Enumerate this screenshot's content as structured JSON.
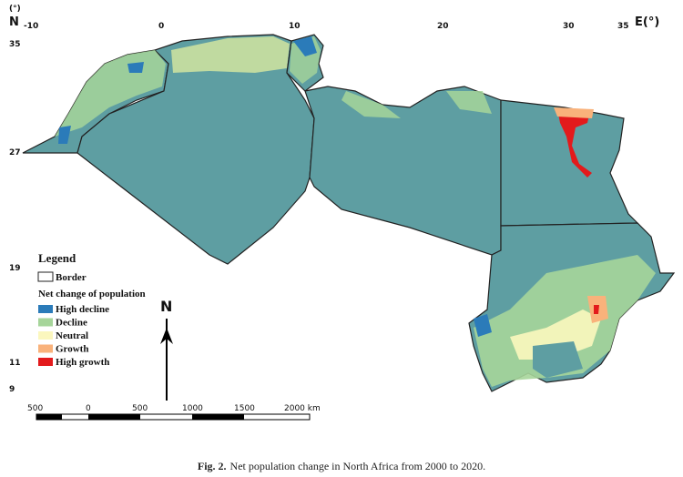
{
  "axes": {
    "lat_unit": "(°)",
    "lat_letter": "N",
    "lat_ticks": [
      "35",
      "27",
      "19",
      "11",
      "9"
    ],
    "lon_ticks": [
      "-10",
      "0",
      "10",
      "20",
      "30",
      "35"
    ],
    "lon_unit": "E(°)"
  },
  "legend": {
    "title": "Legend",
    "border": "Border",
    "subtitle": "Net change of population",
    "items": [
      {
        "name": "High decline",
        "color": "#2b7bb9"
      },
      {
        "name": "Decline",
        "color": "#a6d59a"
      },
      {
        "name": "Neutral",
        "color": "#fbf7be"
      },
      {
        "name": "Growth",
        "color": "#f9b27b"
      },
      {
        "name": "High growth",
        "color": "#e31a1c"
      }
    ]
  },
  "north_arrow": "N",
  "scale_bar": [
    "500",
    "0",
    "500",
    "1000",
    "1500",
    "2000 km"
  ],
  "caption": {
    "label": "Fig. 2.",
    "text": "Net population change in North Africa from 2000 to 2020."
  }
}
